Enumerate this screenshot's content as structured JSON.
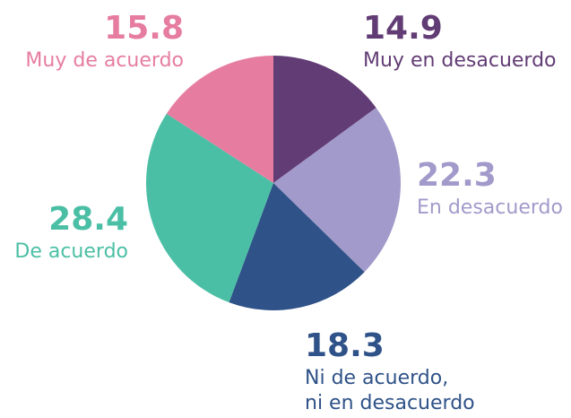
{
  "chart_data": {
    "type": "pie",
    "categories": [
      "Muy en desacuerdo",
      "En desacuerdo",
      "Ni de acuerdo,\nni en desacuerdo",
      "De acuerdo",
      "Muy de acuerdo"
    ],
    "values": [
      14.9,
      22.3,
      18.3,
      28.4,
      15.8
    ],
    "colors": [
      "#623c74",
      "#a29aca",
      "#2f5288",
      "#4bbfa5",
      "#e67da0"
    ]
  }
}
